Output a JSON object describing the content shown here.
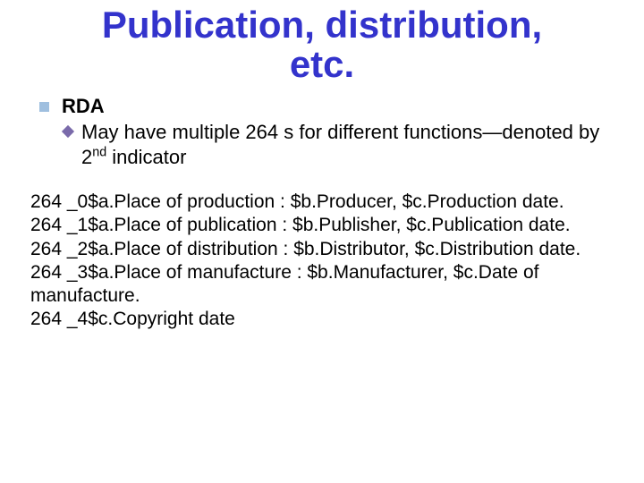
{
  "colors": {
    "title": "#3333cc",
    "body": "#000000",
    "square_bullet": "#9fbfdf",
    "diamond_bullet": "#7a6aaa"
  },
  "fontsizes": {
    "title": 42,
    "bullet": 22,
    "body": 21
  },
  "title_line1": "Publication, distribution,",
  "title_line2": "etc.",
  "bullet1": "RDA",
  "bullet2_pre": "May",
  "bullet2_mid": " have multiple 264 s for different functions—denoted by 2",
  "bullet2_sup": "nd",
  "bullet2_post": " indicator",
  "body_lines": [
    "264 _0$a.Place of production : $b.Producer, $c.Production date.",
    "264 _1$a.Place of publication : $b.Publisher, $c.Publication date.",
    "264 _2$a.Place of distribution : $b.Distributor, $c.Distribution date.",
    "264 _3$a.Place of manufacture : $b.Manufacturer, $c.Date of manufacture.",
    "264 _4$c.Copyright date"
  ]
}
